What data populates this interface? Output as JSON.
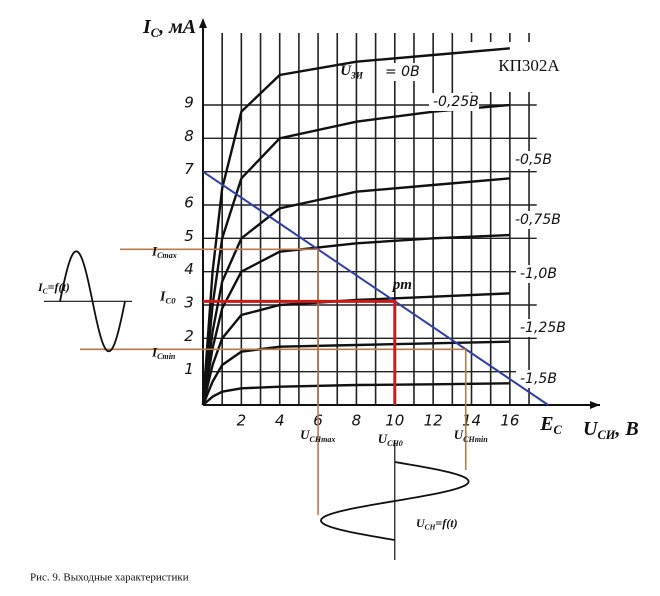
{
  "chart_data": {
    "type": "line",
    "title": "КП302А",
    "caption": "Рис. 9. Выходные характеристики",
    "y_label": {
      "main": "I",
      "sub": "C",
      "rest": ", мА"
    },
    "x_label": {
      "main": "U",
      "sub": "СИ",
      "rest": ", В"
    },
    "series_prefix": {
      "main": "U",
      "sub": "ЗИ"
    },
    "xlim": [
      0,
      20.7
    ],
    "ylim": [
      0,
      11.4
    ],
    "xticks": [
      2,
      4,
      6,
      8,
      10,
      12,
      14,
      16
    ],
    "xminorticks": [
      1,
      3,
      5,
      7,
      9,
      11,
      13,
      15,
      17
    ],
    "yticks": [
      1,
      2,
      3,
      4,
      5,
      6,
      7,
      8,
      9
    ],
    "grid": true,
    "x": [
      0,
      0.5,
      1,
      2,
      4,
      8,
      12,
      16
    ],
    "series": [
      {
        "name": "= 0В",
        "color": "#111111",
        "values": [
          0,
          4,
          6.5,
          8.8,
          9.9,
          10.3,
          10.5,
          10.7
        ]
      },
      {
        "name": "-0,25В",
        "color": "#111111",
        "values": [
          0,
          3,
          5,
          6.8,
          8,
          8.5,
          8.8,
          9.0
        ]
      },
      {
        "name": "-0,5В",
        "color": "#111111",
        "values": [
          0,
          2.2,
          3.7,
          5,
          5.9,
          6.4,
          6.6,
          6.8
        ]
      },
      {
        "name": "-0,75В",
        "color": "#111111",
        "values": [
          0,
          1.7,
          2.9,
          4,
          4.6,
          4.85,
          5,
          5.1
        ]
      },
      {
        "name": "-1,0В",
        "color": "#111111",
        "values": [
          0,
          1.2,
          2,
          2.7,
          3.0,
          3.15,
          3.25,
          3.35
        ]
      },
      {
        "name": "-1,25В",
        "color": "#111111",
        "values": [
          0,
          0.7,
          1.2,
          1.6,
          1.75,
          1.8,
          1.85,
          1.9
        ]
      },
      {
        "name": "-1,5В",
        "color": "#111111",
        "values": [
          0,
          0.25,
          0.4,
          0.5,
          0.55,
          0.6,
          0.62,
          0.65
        ]
      }
    ],
    "load_line": {
      "color": "#2f3fa8",
      "x": [
        0,
        18
      ],
      "values": [
        7,
        0
      ],
      "label": {
        "main": "E",
        "sub": "C"
      }
    },
    "operating_point": {
      "label": "pm",
      "x": 10,
      "y": 3.11,
      "color": "#cc1a1a",
      "x_label": {
        "main": "U",
        "sub": "CH0"
      },
      "y_label": {
        "main": "I",
        "sub": "C0"
      }
    },
    "swing": {
      "color": "#b97a4a",
      "x_max": 6,
      "x_min": 13.7,
      "y_max": 4.67,
      "y_min": 1.67,
      "x_max_label": {
        "main": "U",
        "sub": "CHmax"
      },
      "x_min_label": {
        "main": "U",
        "sub": "CHmin"
      },
      "y_max_label": {
        "main": "I",
        "sub": "Cmax"
      },
      "y_min_label": {
        "main": "I",
        "sub": "Cmin"
      },
      "i_wave_label": {
        "main": "I",
        "sub": "C",
        "rest": "=f(t)"
      },
      "u_wave_label": {
        "main": "U",
        "sub": "CH",
        "rest": "=f(t)"
      }
    }
  }
}
